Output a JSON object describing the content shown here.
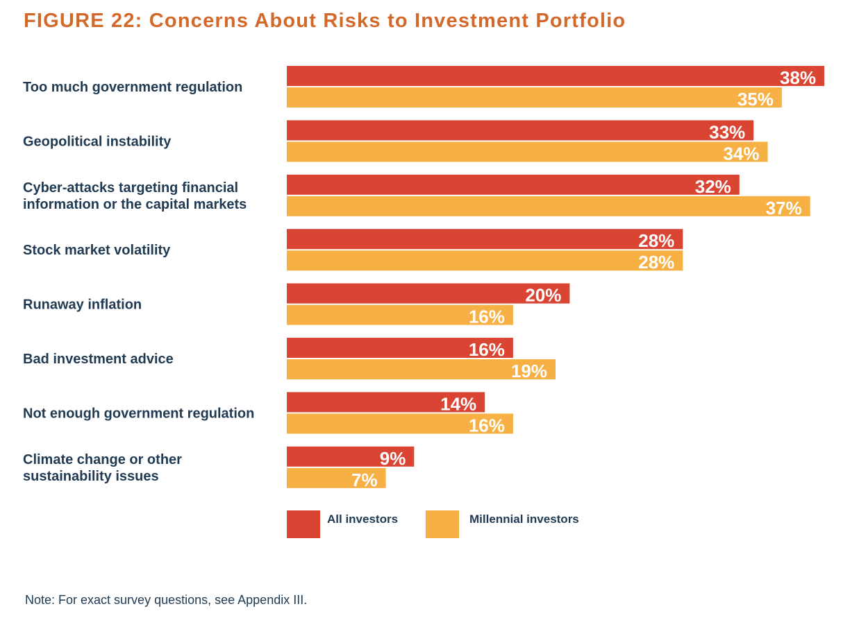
{
  "figure": {
    "title": "FIGURE 22: Concerns About Risks to Investment Portfolio",
    "title_color": "#d2692b",
    "note": "Note: For exact survey questions, see Appendix III."
  },
  "chart_data": {
    "type": "bar",
    "orientation": "horizontal",
    "title": "FIGURE 22: Concerns About Risks to Investment Portfolio",
    "categories": [
      [
        "Too much government regulation"
      ],
      [
        "Geopolitical instability"
      ],
      [
        "Cyber-attacks targeting financial",
        "information or the capital markets"
      ],
      [
        "Stock market volatility"
      ],
      [
        "Runaway inflation"
      ],
      [
        "Bad investment advice"
      ],
      [
        "Not enough government regulation"
      ],
      [
        "Climate change or other",
        "sustainability issues"
      ]
    ],
    "series": [
      {
        "name": "All investors",
        "color": "#d94433",
        "values": [
          38,
          33,
          32,
          28,
          20,
          16,
          14,
          9
        ]
      },
      {
        "name": "Millennial investors",
        "color": "#f7b044",
        "values": [
          35,
          34,
          37,
          28,
          16,
          19,
          16,
          7
        ]
      }
    ],
    "value_suffix": "%",
    "xlim": [
      0,
      38
    ],
    "grid": false,
    "legend_position": "bottom"
  },
  "legend": {
    "all_label": "All investors",
    "millennial_label": "Millennial investors"
  }
}
